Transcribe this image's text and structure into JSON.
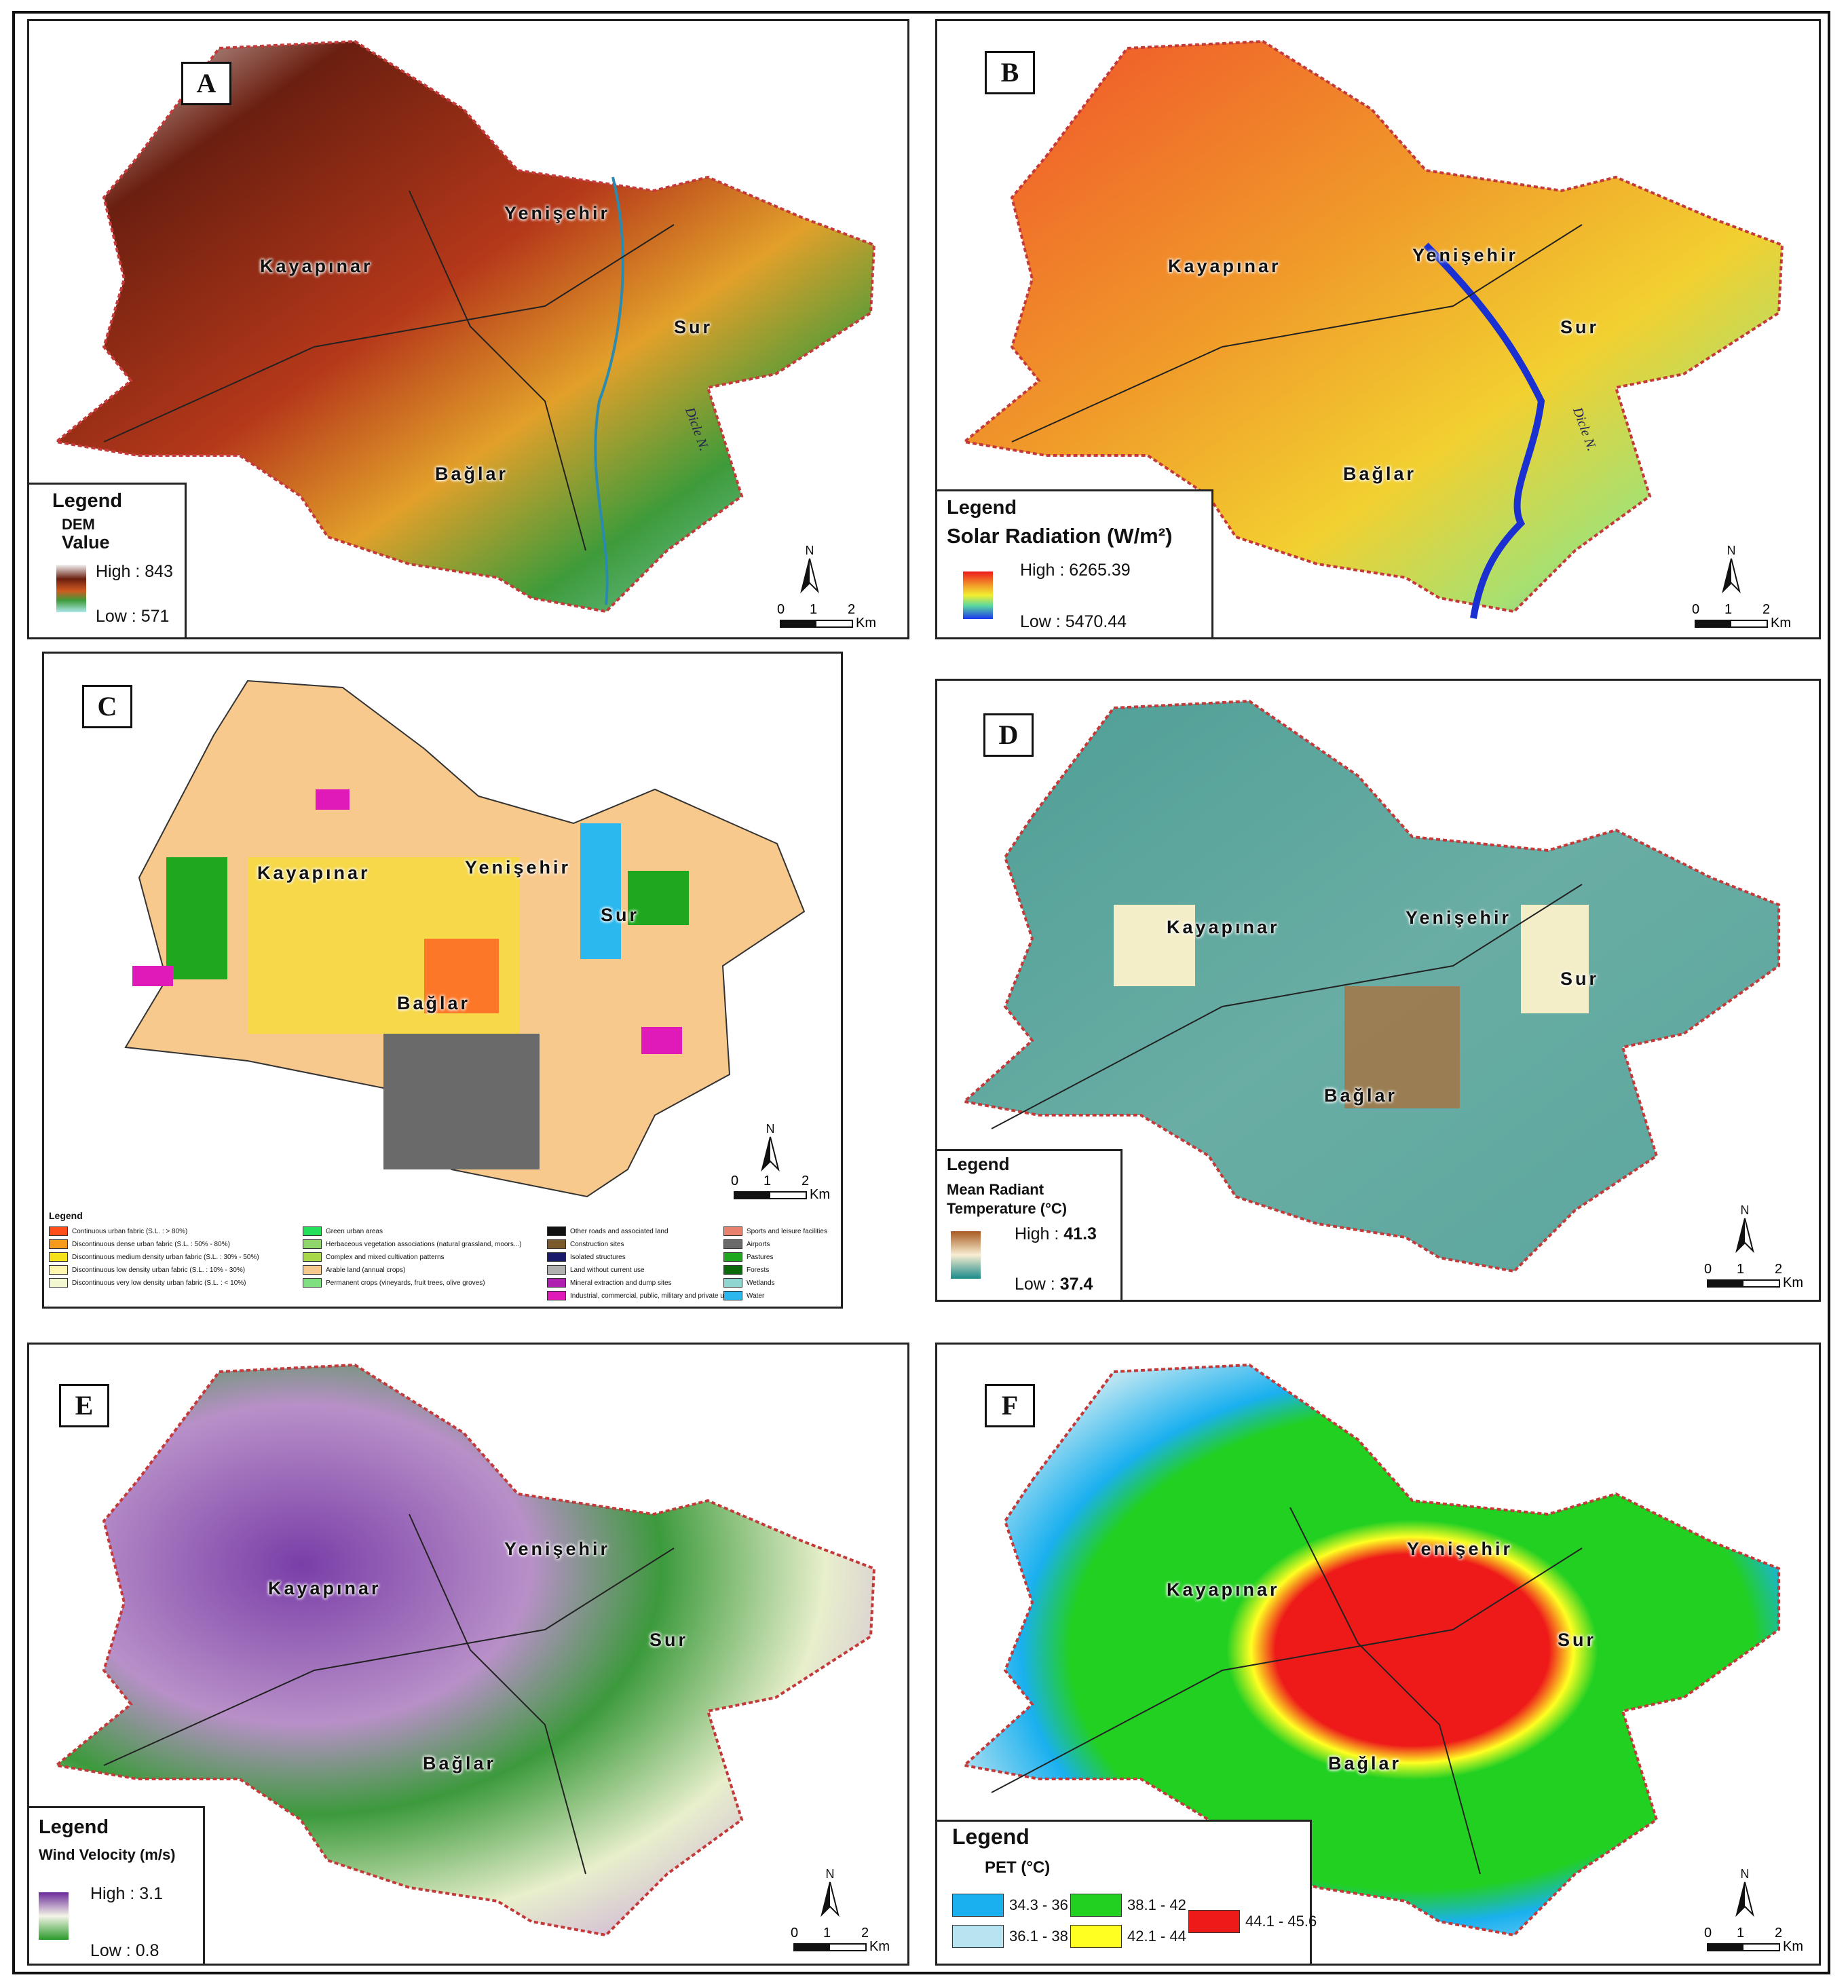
{
  "places": {
    "kayapinar": "Kayapınar",
    "yenisehir": "Yenişehir",
    "sur": "Sur",
    "baglar": "Bağlar",
    "river": "Dicle N."
  },
  "scale": {
    "zero": "0",
    "one": "1",
    "two": "2",
    "unit": "Km"
  },
  "north": "N",
  "panels": {
    "A": {
      "label": "A",
      "legend": {
        "title": "Legend",
        "sub1": "DEM",
        "sub2": "Value",
        "high": "High : 843",
        "low": "Low : 571"
      }
    },
    "B": {
      "label": "B",
      "legend": {
        "title": "Legend",
        "sub1": "Solar Radiation (W/m²)",
        "high": "High : 6265.39",
        "low": "Low : 5470.44"
      }
    },
    "C": {
      "label": "C",
      "legend": {
        "title": "Legend",
        "items": [
          {
            "label": "Continuous urban fabric (S.L. : > 80%)",
            "color": "#ff4e1a"
          },
          {
            "label": "Discontinuous dense urban fabric (S.L. : 50% - 80%)",
            "color": "#f59a1b"
          },
          {
            "label": "Discontinuous medium density urban fabric (S.L. : 30% - 50%)",
            "color": "#f5e21b"
          },
          {
            "label": "Discontinuous low density urban fabric (S.L. : 10% - 30%)",
            "color": "#fff7b0"
          },
          {
            "label": "Discontinuous very low density urban fabric (S.L. : < 10%)",
            "color": "#f2f7d2"
          },
          {
            "label": "Green urban areas",
            "color": "#22e05a"
          },
          {
            "label": "Herbaceous vegetation associations (natural grassland, moors...)",
            "color": "#8ed66a"
          },
          {
            "label": "Complex and mixed cultivation patterns",
            "color": "#a8d84a"
          },
          {
            "label": "Arable land (annual crops)",
            "color": "#f8c98d"
          },
          {
            "label": "Permanent crops (vineyards, fruit trees, olive groves)",
            "color": "#7ee07e"
          },
          {
            "label": "Other roads and associated land",
            "color": "#111111"
          },
          {
            "label": "Construction sites",
            "color": "#7a5a2a"
          },
          {
            "label": "Isolated structures",
            "color": "#1a1a6a"
          },
          {
            "label": "Land without current use",
            "color": "#b0b0b0"
          },
          {
            "label": "Mineral extraction and dump sites",
            "color": "#b020b0"
          },
          {
            "label": "Industrial, commercial, public, military and private units",
            "color": "#e01ab8"
          },
          {
            "label": "Sports and leisure facilities",
            "color": "#e8826e"
          },
          {
            "label": "Airports",
            "color": "#6a6a6a"
          },
          {
            "label": "Pastures",
            "color": "#1fa81f"
          },
          {
            "label": "Forests",
            "color": "#0a6a0a"
          },
          {
            "label": "Wetlands",
            "color": "#8fd6d0"
          },
          {
            "label": "Water",
            "color": "#2ab8ee"
          }
        ]
      }
    },
    "D": {
      "label": "D",
      "legend": {
        "title": "Legend",
        "sub1": "Mean Radiant",
        "sub2": "Temperature (°C)",
        "high": "High : ",
        "high_val": "41.3",
        "low": "Low : ",
        "low_val": "37.4"
      }
    },
    "E": {
      "label": "E",
      "legend": {
        "title": "Legend",
        "sub1": "Wind Velocity (m/s)",
        "high": "High : 3.1",
        "low": "Low : 0.8"
      }
    },
    "F": {
      "label": "F",
      "legend": {
        "title": "Legend",
        "sub1": "PET (°C)",
        "classes": [
          {
            "label": "34.3 - 36",
            "color": "#1ab0ef"
          },
          {
            "label": "36.1 - 38",
            "color": "#b8e4f2"
          },
          {
            "label": "38.1 - 42",
            "color": "#22d022"
          },
          {
            "label": "42.1 - 44",
            "color": "#ffff22"
          },
          {
            "label": "44.1 - 45.6",
            "color": "#ee1a1a"
          }
        ]
      }
    }
  }
}
